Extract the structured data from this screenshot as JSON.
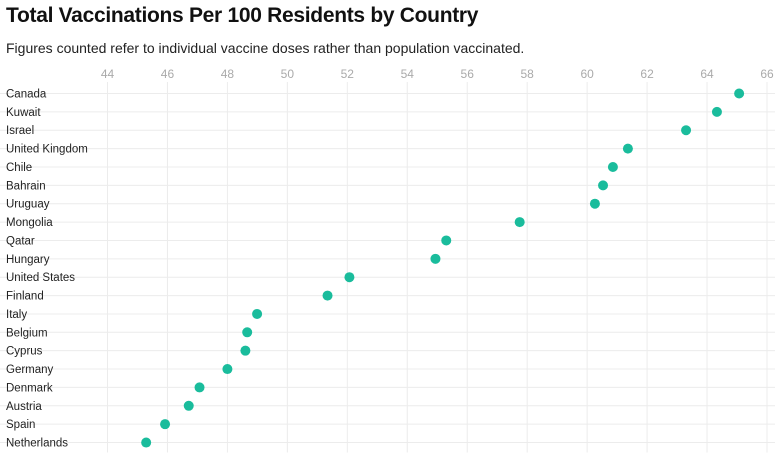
{
  "chart_data": {
    "type": "scatter",
    "title": "Total Vaccinations Per 100 Residents by Country",
    "subtitle": "Figures counted refer to individual vaccine doses rather than population vaccinated.",
    "xlim": [
      44,
      66
    ],
    "xticks": [
      "44",
      "46",
      "48",
      "50",
      "52",
      "54",
      "56",
      "58",
      "60",
      "62",
      "64",
      "66"
    ],
    "grid": true,
    "color": "#1abc9c",
    "categories": [
      "Canada",
      "Kuwait",
      "Israel",
      "United Kingdom",
      "Chile",
      "Bahrain",
      "Uruguay",
      "Mongolia",
      "Qatar",
      "Hungary",
      "United States",
      "Finland",
      "Italy",
      "Belgium",
      "Cyprus",
      "Germany",
      "Denmark",
      "Austria",
      "Spain",
      "Netherlands"
    ],
    "values": [
      65.07,
      64.33,
      63.3,
      61.36,
      60.86,
      60.53,
      60.26,
      57.75,
      55.3,
      54.94,
      52.07,
      51.34,
      48.99,
      48.66,
      48.6,
      48.0,
      47.07,
      46.71,
      45.92,
      45.29
    ]
  }
}
